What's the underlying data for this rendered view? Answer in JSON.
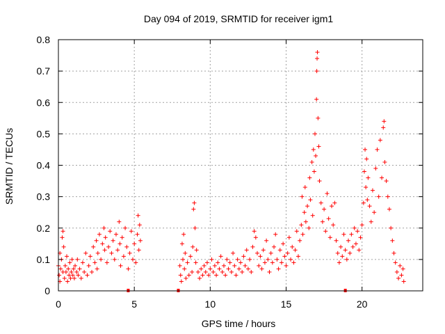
{
  "chart_data": {
    "type": "scatter",
    "title": "Day 094 of 2019, SRMTID for receiver igm1",
    "xlabel": "GPS time / hours",
    "ylabel": "SRMTID / TECUs",
    "xlim": [
      0,
      24
    ],
    "ylim": [
      0,
      0.8
    ],
    "xticks": [
      0,
      5,
      10,
      15,
      20
    ],
    "xtick_labels": [
      "0",
      "5",
      "10",
      "15",
      "20"
    ],
    "yticks": [
      0,
      0.1,
      0.2,
      0.3,
      0.4,
      0.5,
      0.6,
      0.7,
      0.8
    ],
    "ytick_labels": [
      "0",
      "0.1",
      "0.2",
      "0.3",
      "0.4",
      "0.5",
      "0.6",
      "0.7",
      "0.8"
    ],
    "grid": true,
    "marker": "+",
    "color": "#ff0000",
    "gap_markers_x": [
      4.6,
      7.9,
      18.9
    ],
    "series": [
      {
        "name": "SRMTID",
        "points": [
          [
            0.0,
            0.08
          ],
          [
            0.05,
            0.05
          ],
          [
            0.1,
            0.03
          ],
          [
            0.1,
            0.12
          ],
          [
            0.15,
            0.07
          ],
          [
            0.2,
            0.1
          ],
          [
            0.25,
            0.17
          ],
          [
            0.3,
            0.19
          ],
          [
            0.3,
            0.06
          ],
          [
            0.35,
            0.14
          ],
          [
            0.4,
            0.04
          ],
          [
            0.45,
            0.08
          ],
          [
            0.5,
            0.06
          ],
          [
            0.55,
            0.11
          ],
          [
            0.6,
            0.03
          ],
          [
            0.65,
            0.07
          ],
          [
            0.7,
            0.05
          ],
          [
            0.75,
            0.09
          ],
          [
            0.8,
            0.04
          ],
          [
            0.85,
            0.06
          ],
          [
            0.9,
            0.1
          ],
          [
            0.95,
            0.05
          ],
          [
            1.0,
            0.07
          ],
          [
            1.05,
            0.04
          ],
          [
            1.1,
            0.08
          ],
          [
            1.2,
            0.06
          ],
          [
            1.25,
            0.1
          ],
          [
            1.3,
            0.05
          ],
          [
            1.4,
            0.07
          ],
          [
            1.5,
            0.04
          ],
          [
            1.6,
            0.09
          ],
          [
            1.7,
            0.06
          ],
          [
            1.8,
            0.12
          ],
          [
            1.9,
            0.05
          ],
          [
            2.0,
            0.08
          ],
          [
            2.1,
            0.11
          ],
          [
            2.2,
            0.06
          ],
          [
            2.3,
            0.14
          ],
          [
            2.4,
            0.09
          ],
          [
            2.5,
            0.16
          ],
          [
            2.55,
            0.07
          ],
          [
            2.6,
            0.12
          ],
          [
            2.7,
            0.18
          ],
          [
            2.8,
            0.1
          ],
          [
            2.9,
            0.15
          ],
          [
            3.0,
            0.2
          ],
          [
            3.05,
            0.13
          ],
          [
            3.1,
            0.17
          ],
          [
            3.2,
            0.09
          ],
          [
            3.3,
            0.14
          ],
          [
            3.4,
            0.19
          ],
          [
            3.5,
            0.12
          ],
          [
            3.6,
            0.16
          ],
          [
            3.7,
            0.1
          ],
          [
            3.8,
            0.18
          ],
          [
            3.9,
            0.13
          ],
          [
            4.0,
            0.22
          ],
          [
            4.05,
            0.15
          ],
          [
            4.1,
            0.08
          ],
          [
            4.2,
            0.17
          ],
          [
            4.3,
            0.11
          ],
          [
            4.4,
            0.2
          ],
          [
            4.5,
            0.14
          ],
          [
            4.6,
            0.07
          ],
          [
            4.7,
            0.12
          ],
          [
            4.8,
            0.19
          ],
          [
            4.9,
            0.1
          ],
          [
            5.0,
            0.15
          ],
          [
            5.1,
            0.09
          ],
          [
            5.2,
            0.18
          ],
          [
            5.25,
            0.24
          ],
          [
            5.3,
            0.13
          ],
          [
            5.35,
            0.21
          ],
          [
            5.4,
            0.16
          ],
          [
            8.0,
            0.08
          ],
          [
            8.05,
            0.05
          ],
          [
            8.1,
            0.03
          ],
          [
            8.15,
            0.15
          ],
          [
            8.2,
            0.1
          ],
          [
            8.25,
            0.18
          ],
          [
            8.3,
            0.07
          ],
          [
            8.35,
            0.12
          ],
          [
            8.4,
            0.04
          ],
          [
            8.5,
            0.09
          ],
          [
            8.6,
            0.05
          ],
          [
            8.7,
            0.11
          ],
          [
            8.8,
            0.06
          ],
          [
            8.85,
            0.14
          ],
          [
            8.9,
            0.26
          ],
          [
            8.95,
            0.28
          ],
          [
            9.0,
            0.2
          ],
          [
            9.05,
            0.09
          ],
          [
            9.1,
            0.13
          ],
          [
            9.2,
            0.06
          ],
          [
            9.3,
            0.04
          ],
          [
            9.4,
            0.07
          ],
          [
            9.5,
            0.05
          ],
          [
            9.6,
            0.08
          ],
          [
            9.7,
            0.06
          ],
          [
            9.8,
            0.09
          ],
          [
            9.9,
            0.05
          ],
          [
            10.0,
            0.07
          ],
          [
            10.1,
            0.1
          ],
          [
            10.2,
            0.06
          ],
          [
            10.3,
            0.08
          ],
          [
            10.4,
            0.05
          ],
          [
            10.5,
            0.09
          ],
          [
            10.6,
            0.07
          ],
          [
            10.7,
            0.11
          ],
          [
            10.8,
            0.06
          ],
          [
            10.9,
            0.08
          ],
          [
            11.0,
            0.05
          ],
          [
            11.1,
            0.1
          ],
          [
            11.2,
            0.07
          ],
          [
            11.3,
            0.09
          ],
          [
            11.4,
            0.06
          ],
          [
            11.5,
            0.12
          ],
          [
            11.6,
            0.08
          ],
          [
            11.7,
            0.05
          ],
          [
            11.8,
            0.1
          ],
          [
            11.9,
            0.07
          ],
          [
            12.0,
            0.09
          ],
          [
            12.1,
            0.06
          ],
          [
            12.2,
            0.11
          ],
          [
            12.3,
            0.08
          ],
          [
            12.4,
            0.13
          ],
          [
            12.5,
            0.07
          ],
          [
            12.6,
            0.1
          ],
          [
            12.7,
            0.06
          ],
          [
            12.8,
            0.14
          ],
          [
            12.9,
            0.19
          ],
          [
            13.0,
            0.17
          ],
          [
            13.1,
            0.12
          ],
          [
            13.2,
            0.08
          ],
          [
            13.3,
            0.11
          ],
          [
            13.4,
            0.07
          ],
          [
            13.5,
            0.13
          ],
          [
            13.6,
            0.09
          ],
          [
            13.7,
            0.16
          ],
          [
            13.8,
            0.1
          ],
          [
            13.9,
            0.06
          ],
          [
            14.0,
            0.12
          ],
          [
            14.1,
            0.09
          ],
          [
            14.2,
            0.14
          ],
          [
            14.3,
            0.18
          ],
          [
            14.4,
            0.1
          ],
          [
            14.5,
            0.07
          ],
          [
            14.6,
            0.13
          ],
          [
            14.7,
            0.09
          ],
          [
            14.8,
            0.15
          ],
          [
            14.9,
            0.11
          ],
          [
            15.0,
            0.08
          ],
          [
            15.1,
            0.12
          ],
          [
            15.2,
            0.17
          ],
          [
            15.3,
            0.1
          ],
          [
            15.4,
            0.14
          ],
          [
            15.5,
            0.09
          ],
          [
            15.6,
            0.13
          ],
          [
            15.7,
            0.19
          ],
          [
            15.8,
            0.11
          ],
          [
            15.9,
            0.16
          ],
          [
            16.0,
            0.21
          ],
          [
            16.05,
            0.3
          ],
          [
            16.1,
            0.18
          ],
          [
            16.2,
            0.25
          ],
          [
            16.25,
            0.33
          ],
          [
            16.3,
            0.22
          ],
          [
            16.4,
            0.27
          ],
          [
            16.5,
            0.2
          ],
          [
            16.55,
            0.36
          ],
          [
            16.6,
            0.29
          ],
          [
            16.7,
            0.41
          ],
          [
            16.75,
            0.24
          ],
          [
            16.8,
            0.45
          ],
          [
            16.85,
            0.38
          ],
          [
            16.9,
            0.5
          ],
          [
            16.95,
            0.43
          ],
          [
            17.0,
            0.61
          ],
          [
            17.02,
            0.7
          ],
          [
            17.04,
            0.74
          ],
          [
            17.06,
            0.76
          ],
          [
            17.1,
            0.55
          ],
          [
            17.15,
            0.46
          ],
          [
            17.2,
            0.35
          ],
          [
            17.3,
            0.28
          ],
          [
            17.4,
            0.22
          ],
          [
            17.5,
            0.26
          ],
          [
            17.6,
            0.19
          ],
          [
            17.7,
            0.31
          ],
          [
            17.8,
            0.23
          ],
          [
            17.9,
            0.17
          ],
          [
            18.0,
            0.27
          ],
          [
            18.1,
            0.21
          ],
          [
            18.2,
            0.28
          ],
          [
            18.3,
            0.16
          ],
          [
            18.4,
            0.12
          ],
          [
            18.5,
            0.09
          ],
          [
            18.6,
            0.14
          ],
          [
            18.7,
            0.11
          ],
          [
            18.8,
            0.18
          ],
          [
            18.9,
            0.13
          ],
          [
            19.0,
            0.1
          ],
          [
            19.1,
            0.16
          ],
          [
            19.2,
            0.12
          ],
          [
            19.3,
            0.18
          ],
          [
            19.4,
            0.14
          ],
          [
            19.5,
            0.2
          ],
          [
            19.6,
            0.15
          ],
          [
            19.7,
            0.19
          ],
          [
            19.8,
            0.13
          ],
          [
            19.9,
            0.17
          ],
          [
            20.0,
            0.21
          ],
          [
            20.1,
            0.28
          ],
          [
            20.15,
            0.38
          ],
          [
            20.2,
            0.45
          ],
          [
            20.25,
            0.33
          ],
          [
            20.3,
            0.42
          ],
          [
            20.35,
            0.29
          ],
          [
            20.4,
            0.36
          ],
          [
            20.5,
            0.27
          ],
          [
            20.6,
            0.22
          ],
          [
            20.7,
            0.32
          ],
          [
            20.8,
            0.25
          ],
          [
            20.9,
            0.39
          ],
          [
            21.0,
            0.45
          ],
          [
            21.1,
            0.3
          ],
          [
            21.2,
            0.48
          ],
          [
            21.3,
            0.36
          ],
          [
            21.4,
            0.52
          ],
          [
            21.45,
            0.54
          ],
          [
            21.5,
            0.41
          ],
          [
            21.6,
            0.35
          ],
          [
            21.7,
            0.3
          ],
          [
            21.8,
            0.26
          ],
          [
            21.9,
            0.2
          ],
          [
            22.0,
            0.16
          ],
          [
            22.1,
            0.12
          ],
          [
            22.2,
            0.09
          ],
          [
            22.3,
            0.06
          ],
          [
            22.4,
            0.04
          ],
          [
            22.5,
            0.08
          ],
          [
            22.6,
            0.05
          ],
          [
            22.7,
            0.07
          ],
          [
            22.75,
            0.03
          ]
        ]
      }
    ]
  }
}
